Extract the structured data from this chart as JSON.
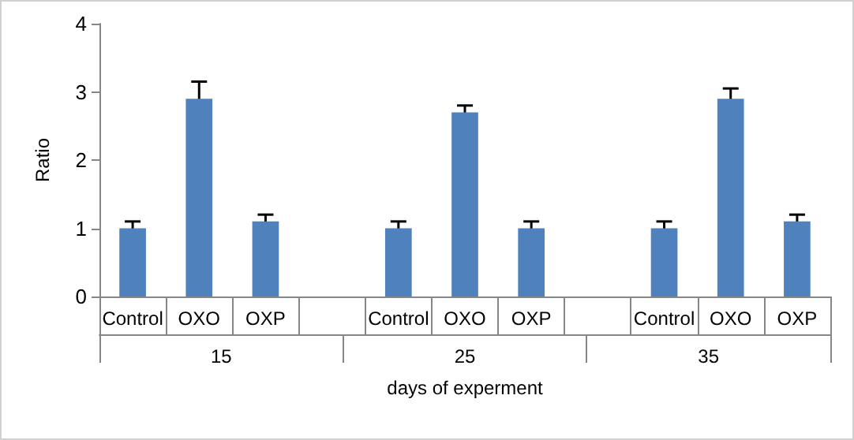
{
  "chart_data": {
    "type": "bar",
    "xlabel": "days of experment",
    "ylabel": "Ratio",
    "categories": [
      "Control",
      "OXO",
      "OXP",
      null,
      "Control",
      "OXO",
      "OXP",
      null,
      "Control",
      "OXO",
      "OXP"
    ],
    "values": [
      1.0,
      2.9,
      1.1,
      null,
      1.0,
      2.7,
      1.0,
      null,
      1.0,
      2.9,
      1.1
    ],
    "errors": [
      0.1,
      0.25,
      0.1,
      null,
      0.1,
      0.1,
      0.1,
      null,
      0.1,
      0.15,
      0.1
    ],
    "color": "#4f81bd",
    "annotations": [
      "15",
      "25",
      "35"
    ],
    "ylim": [
      0,
      4
    ],
    "yticks": [
      0,
      1,
      2,
      3,
      4
    ],
    "grid": false
  }
}
